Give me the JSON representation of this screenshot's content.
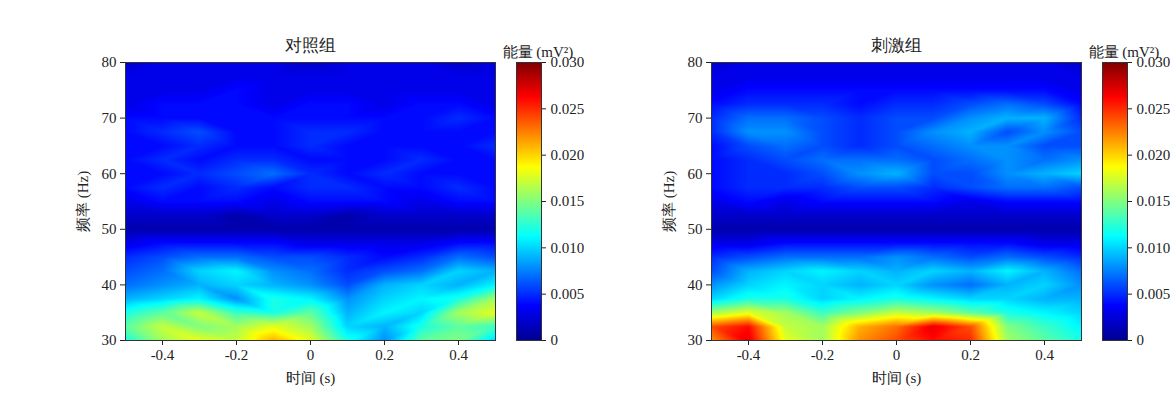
{
  "chart_data": [
    {
      "type": "heatmap",
      "title": "对照组",
      "x_label": "时间 (s)",
      "y_label": "频率 (Hz)",
      "xlim": [
        -0.5,
        0.5
      ],
      "ylim": [
        30,
        80
      ],
      "xticks": [
        -0.4,
        -0.2,
        0,
        0.2,
        0.4
      ],
      "yticks": [
        30,
        40,
        50,
        60,
        70,
        80
      ],
      "x": [
        -0.5,
        -0.4,
        -0.3,
        -0.2,
        -0.1,
        0,
        0.1,
        0.2,
        0.3,
        0.4,
        0.5
      ],
      "y": [
        30,
        32.5,
        35,
        37.5,
        40,
        42.5,
        45,
        47.5,
        50,
        52.5,
        55,
        57.5,
        60,
        62.5,
        65,
        67.5,
        70,
        72.5,
        75,
        77.5,
        80
      ],
      "values": [
        [
          0.012,
          0.016,
          0.018,
          0.017,
          0.021,
          0.018,
          0.012,
          0.008,
          0.014,
          0.015,
          0.01
        ],
        [
          0.014,
          0.017,
          0.015,
          0.016,
          0.018,
          0.016,
          0.01,
          0.009,
          0.012,
          0.014,
          0.013
        ],
        [
          0.012,
          0.014,
          0.017,
          0.013,
          0.012,
          0.014,
          0.009,
          0.011,
          0.01,
          0.016,
          0.018
        ],
        [
          0.009,
          0.01,
          0.011,
          0.008,
          0.012,
          0.011,
          0.008,
          0.01,
          0.011,
          0.012,
          0.016
        ],
        [
          0.007,
          0.008,
          0.009,
          0.01,
          0.009,
          0.008,
          0.006,
          0.009,
          0.01,
          0.009,
          0.011
        ],
        [
          0.006,
          0.007,
          0.01,
          0.011,
          0.008,
          0.007,
          0.005,
          0.006,
          0.007,
          0.01,
          0.009
        ],
        [
          0.005,
          0.006,
          0.007,
          0.007,
          0.006,
          0.006,
          0.005,
          0.004,
          0.005,
          0.007,
          0.006
        ],
        [
          0.003,
          0.004,
          0.004,
          0.004,
          0.004,
          0.003,
          0.003,
          0.003,
          0.003,
          0.004,
          0.004
        ],
        [
          0.001,
          0.001,
          0.001,
          0.001,
          0.001,
          0.001,
          0.001,
          0.001,
          0.001,
          0.001,
          0.001
        ],
        [
          0.002,
          0.002,
          0.002,
          0.001,
          0.002,
          0.002,
          0.001,
          0.002,
          0.002,
          0.002,
          0.002
        ],
        [
          0.003,
          0.004,
          0.004,
          0.004,
          0.003,
          0.004,
          0.004,
          0.004,
          0.003,
          0.004,
          0.004
        ],
        [
          0.004,
          0.005,
          0.004,
          0.005,
          0.004,
          0.005,
          0.005,
          0.004,
          0.004,
          0.005,
          0.004
        ],
        [
          0.004,
          0.004,
          0.005,
          0.006,
          0.007,
          0.005,
          0.004,
          0.005,
          0.004,
          0.004,
          0.004
        ],
        [
          0.004,
          0.005,
          0.004,
          0.005,
          0.005,
          0.004,
          0.004,
          0.004,
          0.005,
          0.004,
          0.004
        ],
        [
          0.004,
          0.004,
          0.005,
          0.004,
          0.004,
          0.005,
          0.004,
          0.004,
          0.004,
          0.004,
          0.005
        ],
        [
          0.004,
          0.005,
          0.006,
          0.004,
          0.004,
          0.005,
          0.005,
          0.004,
          0.004,
          0.004,
          0.004
        ],
        [
          0.004,
          0.004,
          0.004,
          0.004,
          0.004,
          0.004,
          0.004,
          0.004,
          0.004,
          0.005,
          0.004
        ],
        [
          0.003,
          0.004,
          0.004,
          0.004,
          0.003,
          0.004,
          0.004,
          0.003,
          0.004,
          0.004,
          0.003
        ],
        [
          0.003,
          0.003,
          0.003,
          0.004,
          0.003,
          0.003,
          0.003,
          0.003,
          0.003,
          0.003,
          0.003
        ],
        [
          0.003,
          0.003,
          0.003,
          0.003,
          0.003,
          0.003,
          0.003,
          0.003,
          0.003,
          0.003,
          0.003
        ],
        [
          0.002,
          0.003,
          0.003,
          0.003,
          0.003,
          0.002,
          0.003,
          0.003,
          0.003,
          0.002,
          0.003
        ]
      ],
      "colorbar": {
        "title": "能量 (mV²)",
        "range": [
          0,
          0.03
        ],
        "ticks": [
          0,
          0.005,
          {
            "value": 0.01,
            "label": "0.010"
          },
          0.015,
          {
            "value": 0.02,
            "label": "0.020"
          },
          0.025,
          {
            "value": 0.03,
            "label": "0.030"
          }
        ]
      }
    },
    {
      "type": "heatmap",
      "title": "刺激组",
      "x_label": "时间 (s)",
      "y_label": "频率 (Hz)",
      "xlim": [
        -0.5,
        0.5
      ],
      "ylim": [
        30,
        80
      ],
      "xticks": [
        -0.4,
        -0.2,
        0,
        0.2,
        0.4
      ],
      "yticks": [
        30,
        40,
        50,
        60,
        70,
        80
      ],
      "x": [
        -0.5,
        -0.4,
        -0.3,
        -0.2,
        -0.1,
        0,
        0.1,
        0.2,
        0.3,
        0.4,
        0.5
      ],
      "y": [
        30,
        32.5,
        35,
        37.5,
        40,
        42.5,
        45,
        47.5,
        50,
        52.5,
        55,
        57.5,
        60,
        62.5,
        65,
        67.5,
        70,
        72.5,
        75,
        77.5,
        80
      ],
      "values": [
        [
          0.022,
          0.027,
          0.018,
          0.016,
          0.022,
          0.024,
          0.026,
          0.025,
          0.016,
          0.014,
          0.012
        ],
        [
          0.024,
          0.026,
          0.017,
          0.016,
          0.021,
          0.023,
          0.027,
          0.024,
          0.015,
          0.013,
          0.011
        ],
        [
          0.016,
          0.018,
          0.016,
          0.013,
          0.015,
          0.017,
          0.016,
          0.014,
          0.012,
          0.011,
          0.01
        ],
        [
          0.01,
          0.012,
          0.012,
          0.01,
          0.011,
          0.012,
          0.011,
          0.01,
          0.01,
          0.009,
          0.009
        ],
        [
          0.008,
          0.01,
          0.011,
          0.01,
          0.009,
          0.01,
          0.008,
          0.007,
          0.009,
          0.01,
          0.008
        ],
        [
          0.006,
          0.009,
          0.01,
          0.011,
          0.01,
          0.009,
          0.01,
          0.009,
          0.011,
          0.009,
          0.007
        ],
        [
          0.005,
          0.006,
          0.007,
          0.007,
          0.007,
          0.008,
          0.007,
          0.006,
          0.007,
          0.006,
          0.005
        ],
        [
          0.003,
          0.003,
          0.004,
          0.004,
          0.004,
          0.004,
          0.004,
          0.004,
          0.004,
          0.003,
          0.003
        ],
        [
          0.001,
          0.001,
          0.001,
          0.001,
          0.001,
          0.001,
          0.001,
          0.001,
          0.001,
          0.001,
          0.001
        ],
        [
          0.002,
          0.002,
          0.002,
          0.002,
          0.002,
          0.002,
          0.002,
          0.002,
          0.002,
          0.002,
          0.002
        ],
        [
          0.003,
          0.004,
          0.003,
          0.004,
          0.004,
          0.004,
          0.004,
          0.003,
          0.004,
          0.004,
          0.004
        ],
        [
          0.004,
          0.005,
          0.005,
          0.005,
          0.006,
          0.006,
          0.005,
          0.006,
          0.007,
          0.007,
          0.006
        ],
        [
          0.004,
          0.005,
          0.005,
          0.006,
          0.008,
          0.009,
          0.006,
          0.006,
          0.008,
          0.009,
          0.01
        ],
        [
          0.004,
          0.005,
          0.006,
          0.007,
          0.007,
          0.007,
          0.006,
          0.007,
          0.008,
          0.007,
          0.008
        ],
        [
          0.004,
          0.006,
          0.007,
          0.006,
          0.005,
          0.006,
          0.007,
          0.008,
          0.008,
          0.006,
          0.006
        ],
        [
          0.005,
          0.008,
          0.008,
          0.006,
          0.005,
          0.006,
          0.008,
          0.009,
          0.006,
          0.008,
          0.006
        ],
        [
          0.005,
          0.007,
          0.007,
          0.006,
          0.005,
          0.006,
          0.006,
          0.008,
          0.009,
          0.009,
          0.005
        ],
        [
          0.004,
          0.005,
          0.005,
          0.005,
          0.004,
          0.005,
          0.005,
          0.006,
          0.007,
          0.006,
          0.004
        ],
        [
          0.003,
          0.004,
          0.004,
          0.004,
          0.004,
          0.004,
          0.004,
          0.004,
          0.004,
          0.004,
          0.003
        ],
        [
          0.003,
          0.003,
          0.003,
          0.003,
          0.003,
          0.003,
          0.003,
          0.003,
          0.003,
          0.003,
          0.003
        ],
        [
          0.002,
          0.003,
          0.003,
          0.003,
          0.003,
          0.003,
          0.003,
          0.003,
          0.003,
          0.003,
          0.002
        ]
      ],
      "colorbar": {
        "title": "能量 (mV²)",
        "range": [
          0,
          0.03
        ],
        "ticks": [
          0,
          0.005,
          {
            "value": 0.01,
            "label": "0.010"
          },
          0.015,
          {
            "value": 0.02,
            "label": "0.020"
          },
          0.025,
          {
            "value": 0.03,
            "label": "0.030"
          }
        ]
      }
    }
  ]
}
